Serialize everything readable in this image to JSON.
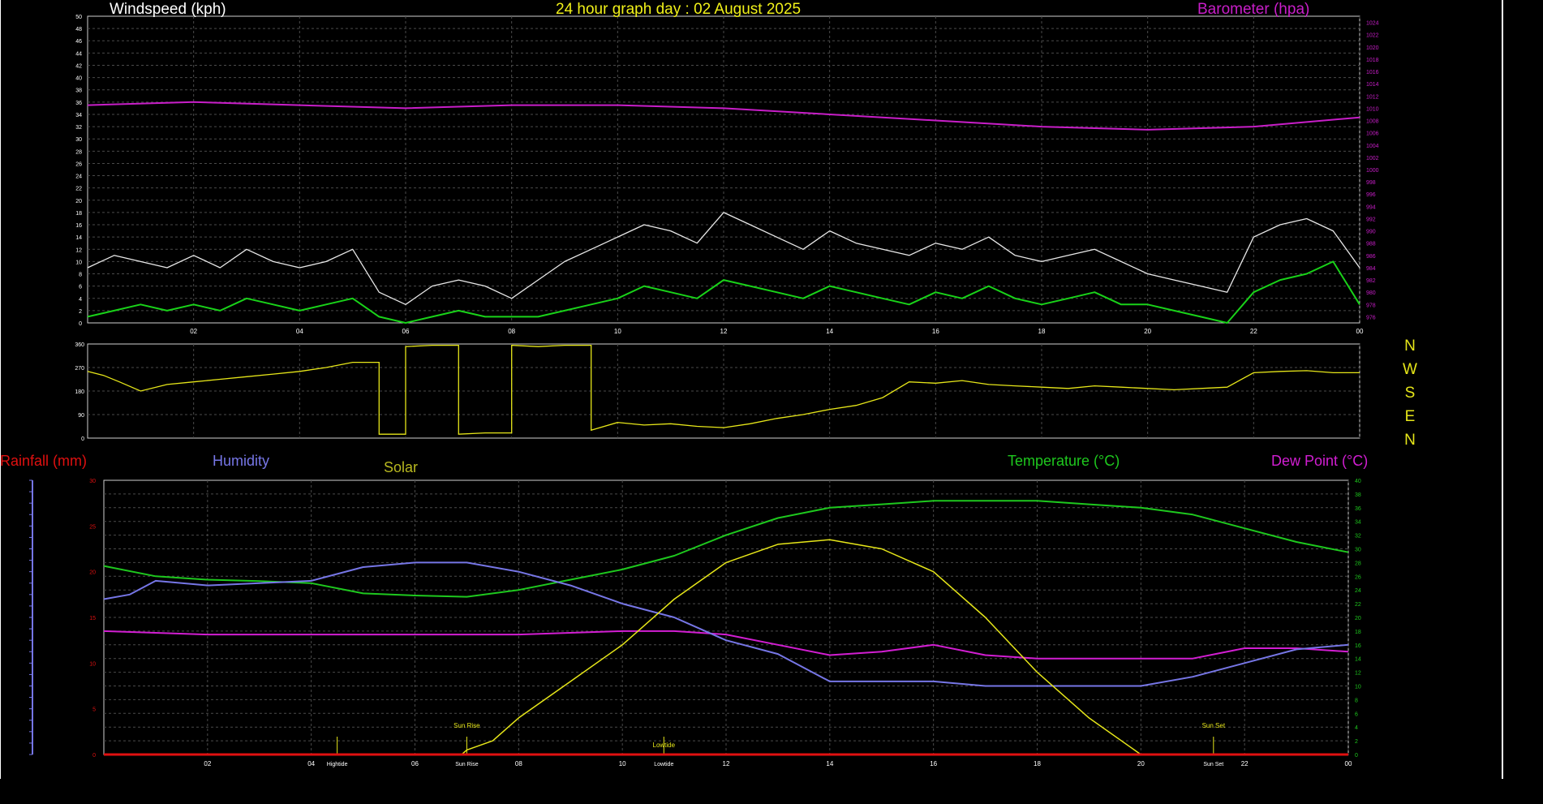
{
  "title": "24 hour graph day : 02 August 2025",
  "colors": {
    "background": "#000000",
    "grid": "#4a4a4a",
    "frame": "#cfcfcf",
    "windspeed": "#e8e8e8",
    "windavg": "#19d219",
    "barometer": "#c81ec8",
    "direction": "#e6e619",
    "rainfall": "#e01010",
    "humidity": "#7676e6",
    "solar": "#e6e619",
    "temperature": "#1ec81e",
    "dewpoint": "#d21ed2",
    "title": "#f0f019",
    "label_white": "#ffffff"
  },
  "compass": [
    "N",
    "W",
    "S",
    "E",
    "N"
  ],
  "chart_data": [
    {
      "type": "line",
      "panel": "wind-baro",
      "left_axis_title": "Windspeed (kph)",
      "right_axis_title": "Barometer (hpa)",
      "x_ticks": [
        "02",
        "04",
        "06",
        "08",
        "10",
        "12",
        "14",
        "16",
        "18",
        "20",
        "22",
        "00"
      ],
      "ylim_left": [
        0,
        50
      ],
      "y_ticks_left": [
        "0",
        "2",
        "4",
        "6",
        "8",
        "10",
        "12",
        "14",
        "16",
        "18",
        "20",
        "22",
        "24",
        "26",
        "28",
        "30",
        "32",
        "34",
        "36",
        "38",
        "40",
        "42",
        "44",
        "46",
        "48",
        "50"
      ],
      "ylim_right": [
        975,
        1025
      ],
      "y_ticks_right": [
        "976",
        "978",
        "980",
        "982",
        "984",
        "986",
        "988",
        "990",
        "992",
        "994",
        "996",
        "998",
        "1000",
        "1002",
        "1004",
        "1006",
        "1008",
        "1010",
        "1012",
        "1014",
        "1016",
        "1018",
        "1020",
        "1022",
        "1024"
      ],
      "series": [
        {
          "key": "windgust",
          "x": [
            0,
            0.5,
            1,
            1.5,
            2,
            2.5,
            3,
            3.5,
            4,
            4.5,
            5,
            5.5,
            6,
            6.5,
            7,
            7.5,
            8,
            8.5,
            9,
            9.5,
            10,
            10.5,
            11,
            11.5,
            12,
            12.5,
            13,
            13.5,
            14,
            14.5,
            15,
            15.5,
            16,
            16.5,
            17,
            17.5,
            18,
            18.5,
            19,
            19.5,
            20,
            20.5,
            21,
            21.5,
            22,
            22.5,
            23,
            23.5,
            24
          ],
          "y": [
            9,
            11,
            10,
            9,
            11,
            9,
            12,
            10,
            9,
            10,
            12,
            5,
            3,
            6,
            7,
            6,
            4,
            7,
            10,
            12,
            14,
            16,
            15,
            13,
            18,
            16,
            14,
            12,
            15,
            13,
            12,
            11,
            13,
            12,
            14,
            11,
            10,
            11,
            12,
            10,
            8,
            7,
            6,
            5,
            14,
            16,
            17,
            15,
            9
          ]
        },
        {
          "key": "windavg",
          "x": [
            0,
            0.5,
            1,
            1.5,
            2,
            2.5,
            3,
            3.5,
            4,
            4.5,
            5,
            5.5,
            6,
            6.5,
            7,
            7.5,
            8,
            8.5,
            9,
            9.5,
            10,
            10.5,
            11,
            11.5,
            12,
            12.5,
            13,
            13.5,
            14,
            14.5,
            15,
            15.5,
            16,
            16.5,
            17,
            17.5,
            18,
            18.5,
            19,
            19.5,
            20,
            20.5,
            21,
            21.5,
            22,
            22.5,
            23,
            23.5,
            24
          ],
          "y": [
            1,
            2,
            3,
            2,
            3,
            2,
            4,
            3,
            2,
            3,
            4,
            1,
            0,
            1,
            2,
            1,
            1,
            1,
            2,
            3,
            4,
            6,
            5,
            4,
            7,
            6,
            5,
            4,
            6,
            5,
            4,
            3,
            5,
            4,
            6,
            4,
            3,
            4,
            5,
            3,
            3,
            2,
            1,
            0,
            5,
            7,
            8,
            10,
            3
          ]
        },
        {
          "key": "barometer",
          "x": [
            0,
            2,
            4,
            6,
            8,
            10,
            12,
            14,
            16,
            18,
            20,
            22,
            24
          ],
          "y": [
            1010.5,
            1011,
            1010.5,
            1010,
            1010.5,
            1010.5,
            1010,
            1009,
            1008,
            1007,
            1006.5,
            1007,
            1008.5
          ]
        }
      ]
    },
    {
      "type": "line",
      "panel": "wind-direction",
      "ylim": [
        0,
        360
      ],
      "y_ticks": [
        "0",
        "90",
        "180",
        "270",
        "360"
      ],
      "series": [
        {
          "key": "direction",
          "x": [
            0,
            0.3,
            0.6,
            1,
            1.5,
            2,
            2.5,
            3,
            3.5,
            4,
            4.5,
            5,
            5.5,
            6,
            6.5,
            7,
            7.5,
            8,
            8.5,
            9,
            9.5,
            10,
            10.5,
            11,
            11.5,
            12,
            12.5,
            13,
            13.5,
            14,
            14.5,
            15,
            15.5,
            16,
            16.5,
            17,
            17.5,
            18,
            18.5,
            19,
            19.5,
            20,
            20.5,
            21,
            21.5,
            22,
            22.5,
            23,
            23.5,
            24
          ],
          "y": [
            255,
            240,
            215,
            180,
            205,
            215,
            225,
            235,
            245,
            255,
            270,
            290,
            15,
            350,
            355,
            15,
            20,
            355,
            350,
            355,
            30,
            60,
            50,
            55,
            45,
            40,
            55,
            75,
            90,
            110,
            125,
            155,
            215,
            210,
            220,
            205,
            200,
            195,
            190,
            200,
            195,
            190,
            185,
            190,
            195,
            250,
            255,
            258,
            250,
            250
          ]
        }
      ]
    },
    {
      "type": "line",
      "panel": "temp-hum",
      "labels": [
        "Rainfall (mm)",
        "Humidity",
        "Solar",
        "Temperature (°C)",
        "Dew Point (°C)"
      ],
      "x_ticks": [
        "02",
        "04",
        "06",
        "08",
        "10",
        "12",
        "14",
        "16",
        "18",
        "20",
        "22",
        "00"
      ],
      "x_annotations": [
        "Hightide",
        "Sun Rise",
        "Lowtide",
        "Sun Set"
      ],
      "annotations_above": [
        "Sun Rise",
        "Lowtide",
        "Sun Set"
      ],
      "ylim_left": [
        0,
        30
      ],
      "y_ticks_left": [
        "0",
        "5",
        "10",
        "15",
        "20",
        "25",
        "30"
      ],
      "ylim_right": [
        0,
        40
      ],
      "y_ticks_right": [
        "0",
        "2",
        "4",
        "6",
        "8",
        "10",
        "12",
        "14",
        "16",
        "18",
        "20",
        "22",
        "24",
        "26",
        "28",
        "30",
        "32",
        "34",
        "36",
        "38",
        "40"
      ],
      "series": [
        {
          "key": "temperature",
          "x": [
            0,
            1,
            2,
            3,
            4,
            5,
            6,
            7,
            8,
            9,
            10,
            11,
            12,
            13,
            14,
            15,
            16,
            17,
            18,
            19,
            20,
            21,
            22,
            23,
            24
          ],
          "y": [
            27.5,
            26,
            25.5,
            25.3,
            25,
            23.5,
            23.2,
            23,
            24,
            25.5,
            27,
            29,
            32,
            34.5,
            36,
            36.5,
            37,
            37,
            37,
            36.5,
            36,
            35,
            33,
            31,
            29.5
          ]
        },
        {
          "key": "dewpoint",
          "x": [
            0,
            2,
            4,
            6,
            8,
            10,
            11,
            12,
            13,
            14,
            15,
            16,
            17,
            18,
            19,
            20,
            21,
            22,
            23,
            24
          ],
          "y": [
            18,
            17.5,
            17.5,
            17.5,
            17.5,
            18,
            18,
            17.5,
            16,
            14.5,
            15,
            16,
            14.5,
            14,
            14,
            14,
            14,
            15.5,
            15.5,
            15
          ]
        },
        {
          "key": "humidity",
          "x": [
            0,
            0.5,
            1,
            2,
            4,
            5,
            6,
            7,
            8,
            9,
            10,
            11,
            12,
            13,
            14,
            15,
            16,
            17,
            18,
            19,
            20,
            21,
            22,
            23,
            24
          ],
          "y": [
            17,
            17.5,
            19,
            18.5,
            19,
            20.5,
            21,
            21,
            20,
            18.5,
            16.5,
            15,
            12.5,
            11,
            8,
            8,
            8,
            7.5,
            7.5,
            7.5,
            7.5,
            8.5,
            10,
            11.5,
            12
          ]
        },
        {
          "key": "solar",
          "x": [
            0,
            6.9,
            7,
            7.5,
            8,
            9,
            10,
            11,
            12,
            13,
            14,
            15,
            16,
            17,
            18,
            19,
            20,
            21,
            22,
            23,
            24
          ],
          "y": [
            0,
            0,
            0.5,
            1.5,
            4,
            8,
            12,
            17,
            21,
            23,
            23.5,
            22.5,
            20,
            15,
            9,
            4,
            0,
            0,
            0,
            0,
            0
          ]
        },
        {
          "key": "rainfall",
          "x": [
            0,
            24
          ],
          "y": [
            0,
            0
          ]
        }
      ]
    }
  ]
}
